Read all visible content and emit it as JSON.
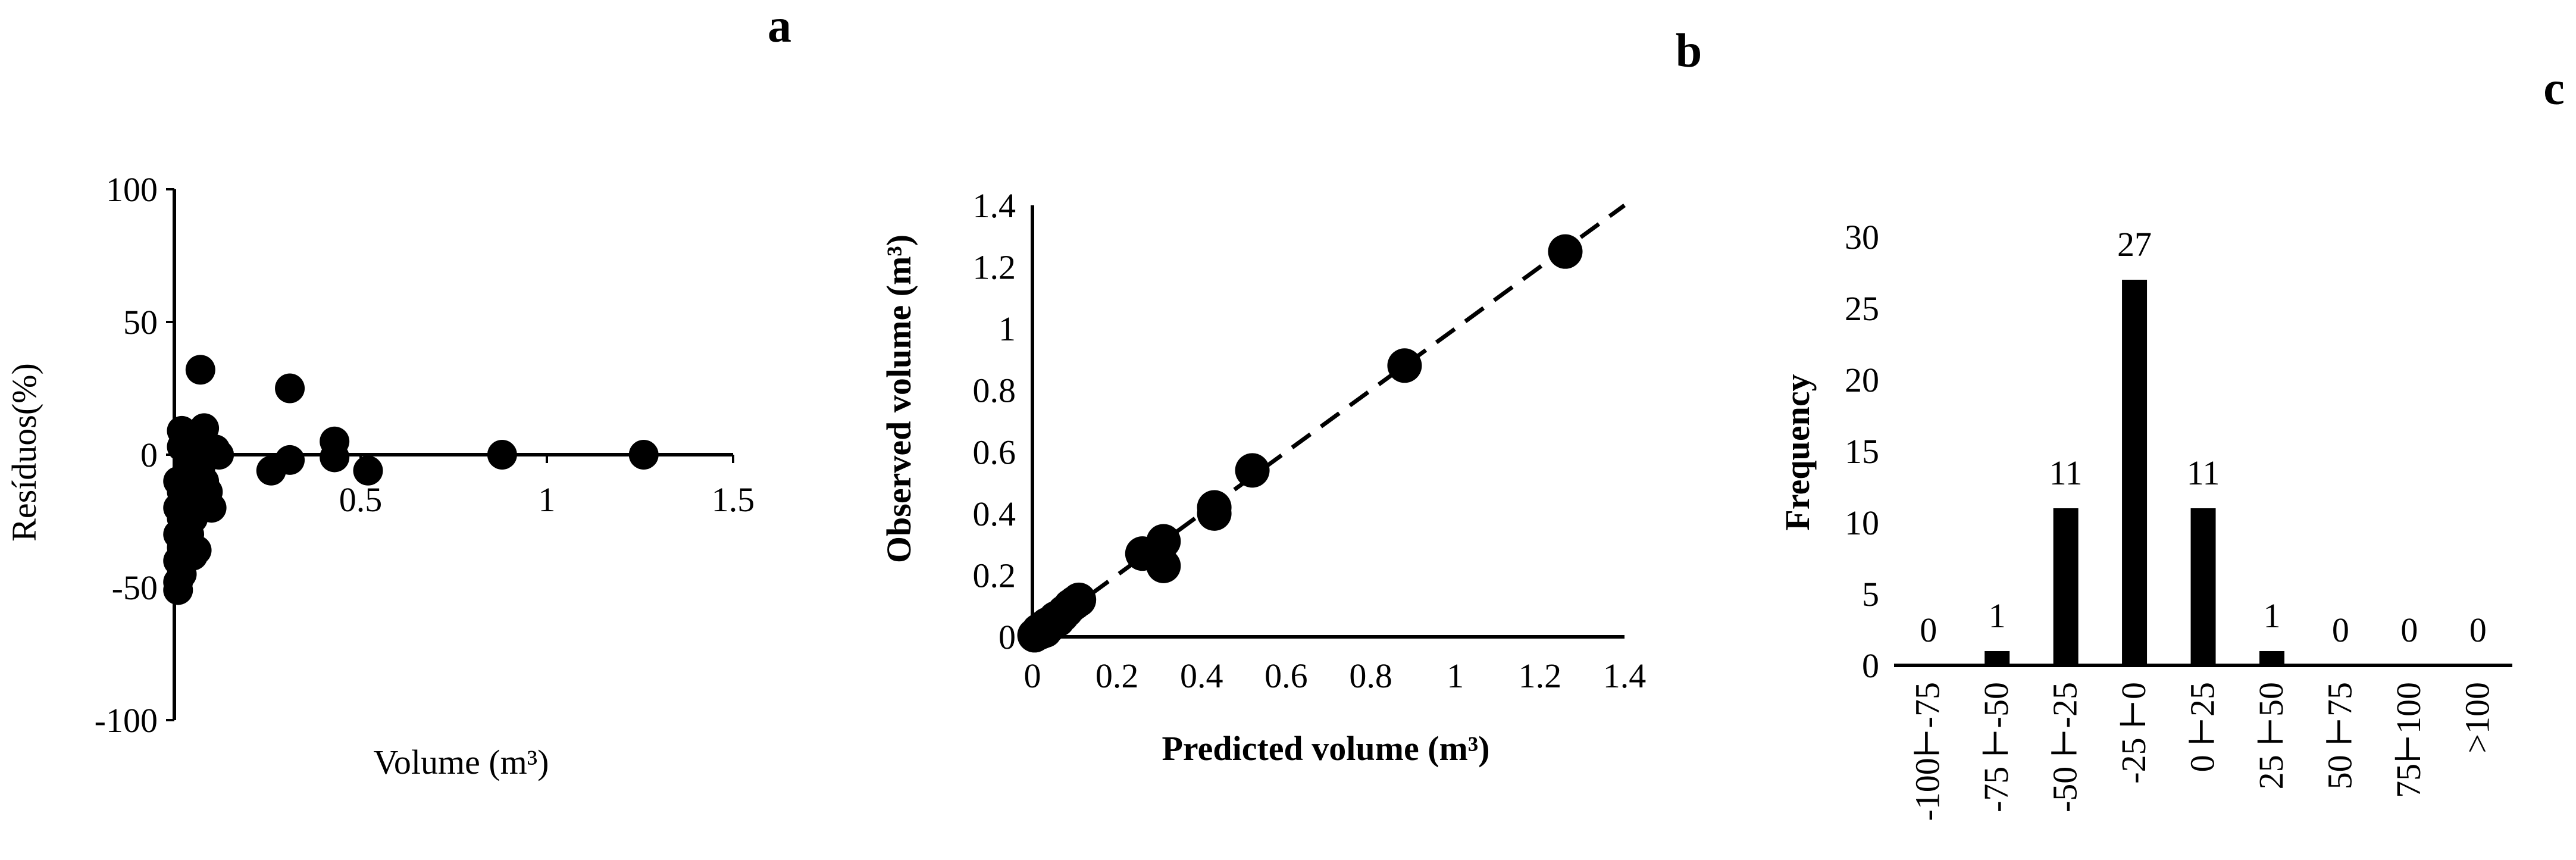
{
  "chart_data": [
    {
      "panel": "a",
      "type": "scatter",
      "xlabel": "Volume  (m³)",
      "ylabel": "Resíduos(%)",
      "xlim": [
        0,
        1.5
      ],
      "ylim": [
        -100,
        100
      ],
      "xticks": [
        0.5,
        1,
        1.5
      ],
      "xtick_labels": [
        "0.5",
        "1",
        "1.5"
      ],
      "yticks": [
        100,
        50,
        0,
        -50,
        -100
      ],
      "ytick_labels": [
        "100",
        "50",
        "0",
        "-50",
        "-100"
      ],
      "points": [
        {
          "x": 0.01,
          "y": -48
        },
        {
          "x": 0.01,
          "y": -51
        },
        {
          "x": 0.02,
          "y": -45
        },
        {
          "x": 0.01,
          "y": -40
        },
        {
          "x": 0.02,
          "y": -35
        },
        {
          "x": 0.01,
          "y": -30
        },
        {
          "x": 0.03,
          "y": -27
        },
        {
          "x": 0.02,
          "y": -24
        },
        {
          "x": 0.01,
          "y": -20
        },
        {
          "x": 0.03,
          "y": -18
        },
        {
          "x": 0.02,
          "y": -14
        },
        {
          "x": 0.01,
          "y": -10
        },
        {
          "x": 0.03,
          "y": -8
        },
        {
          "x": 0.05,
          "y": -38
        },
        {
          "x": 0.06,
          "y": -36
        },
        {
          "x": 0.04,
          "y": -30
        },
        {
          "x": 0.05,
          "y": -24
        },
        {
          "x": 0.06,
          "y": -20
        },
        {
          "x": 0.07,
          "y": -16
        },
        {
          "x": 0.05,
          "y": -12
        },
        {
          "x": 0.08,
          "y": -10
        },
        {
          "x": 0.07,
          "y": -5
        },
        {
          "x": 0.09,
          "y": -14
        },
        {
          "x": 0.1,
          "y": -20
        },
        {
          "x": 0.04,
          "y": -2
        },
        {
          "x": 0.02,
          "y": 3
        },
        {
          "x": 0.02,
          "y": 9
        },
        {
          "x": 0.06,
          "y": 6
        },
        {
          "x": 0.08,
          "y": 10
        },
        {
          "x": 0.07,
          "y": 32
        },
        {
          "x": 0.11,
          "y": 2
        },
        {
          "x": 0.12,
          "y": 0
        },
        {
          "x": 0.26,
          "y": -6
        },
        {
          "x": 0.31,
          "y": -2
        },
        {
          "x": 0.31,
          "y": 25
        },
        {
          "x": 0.43,
          "y": 5
        },
        {
          "x": 0.43,
          "y": -1
        },
        {
          "x": 0.52,
          "y": -6
        },
        {
          "x": 0.88,
          "y": 0
        },
        {
          "x": 1.26,
          "y": 0
        }
      ]
    },
    {
      "panel": "b",
      "type": "scatter",
      "xlabel": "Predicted volume  (m³)",
      "ylabel": "Observed volume  (m³)",
      "xlim": [
        0,
        1.4
      ],
      "ylim": [
        0,
        1.4
      ],
      "xticks": [
        0,
        0.2,
        0.4,
        0.6,
        0.8,
        1.0,
        1.2,
        1.4
      ],
      "xtick_labels": [
        "0",
        "0.2",
        "0.4",
        "0.6",
        "0.8",
        "1",
        "1.2",
        "1.4"
      ],
      "yticks": [
        0,
        0.2,
        0.4,
        0.6,
        0.8,
        1.0,
        1.2,
        1.4
      ],
      "ytick_labels": [
        "0",
        "0.2",
        "0.4",
        "0.6",
        "0.8",
        "1",
        "1.2",
        "1.4"
      ],
      "reference_line": "dashed 1:1",
      "points": [
        {
          "x": 0.005,
          "y": 0.005
        },
        {
          "x": 0.01,
          "y": 0.01
        },
        {
          "x": 0.015,
          "y": 0.02
        },
        {
          "x": 0.02,
          "y": 0.015
        },
        {
          "x": 0.025,
          "y": 0.03
        },
        {
          "x": 0.03,
          "y": 0.02
        },
        {
          "x": 0.035,
          "y": 0.04
        },
        {
          "x": 0.04,
          "y": 0.035
        },
        {
          "x": 0.05,
          "y": 0.05
        },
        {
          "x": 0.055,
          "y": 0.06
        },
        {
          "x": 0.06,
          "y": 0.055
        },
        {
          "x": 0.07,
          "y": 0.07
        },
        {
          "x": 0.075,
          "y": 0.08
        },
        {
          "x": 0.08,
          "y": 0.085
        },
        {
          "x": 0.09,
          "y": 0.1
        },
        {
          "x": 0.1,
          "y": 0.11
        },
        {
          "x": 0.11,
          "y": 0.12
        },
        {
          "x": 0.26,
          "y": 0.27
        },
        {
          "x": 0.31,
          "y": 0.31
        },
        {
          "x": 0.31,
          "y": 0.23
        },
        {
          "x": 0.43,
          "y": 0.42
        },
        {
          "x": 0.43,
          "y": 0.4
        },
        {
          "x": 0.52,
          "y": 0.54
        },
        {
          "x": 0.88,
          "y": 0.88
        },
        {
          "x": 1.26,
          "y": 1.25
        }
      ]
    },
    {
      "panel": "c",
      "type": "bar",
      "xlabel": "",
      "ylabel": "Frequency",
      "ylim": [
        0,
        30
      ],
      "yticks": [
        0,
        5,
        10,
        15,
        20,
        25,
        30
      ],
      "ytick_labels": [
        "0",
        "5",
        "10",
        "15",
        "20",
        "25",
        "30"
      ],
      "categories": [
        "-100⊢-75",
        "-75 ⊢-50",
        "-50 ⊢-25",
        "-25 ⊢0",
        "0  ⊢25",
        "25 ⊢50",
        "50 ⊢75",
        "75⊢100",
        ">100"
      ],
      "values": [
        0,
        1,
        11,
        27,
        11,
        1,
        0,
        0,
        0
      ],
      "data_labels": [
        "0",
        "1",
        "11",
        "27",
        "11",
        "1",
        "0",
        "0",
        "0"
      ]
    }
  ],
  "panels": {
    "a": {
      "letter": "a"
    },
    "b": {
      "letter": "b"
    },
    "c": {
      "letter": "c"
    }
  }
}
